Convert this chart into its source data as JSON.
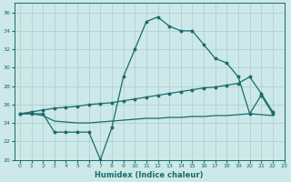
{
  "xlabel": "Humidex (Indice chaleur)",
  "bg_color": "#cce8e8",
  "grid_color": "#aacccc",
  "line_color": "#1a6b6b",
  "xlim": [
    -0.5,
    23
  ],
  "ylim": [
    20,
    37
  ],
  "xticks": [
    0,
    1,
    2,
    3,
    4,
    5,
    6,
    7,
    8,
    9,
    10,
    11,
    12,
    13,
    14,
    15,
    16,
    17,
    18,
    19,
    20,
    21,
    22,
    23
  ],
  "yticks": [
    20,
    22,
    24,
    26,
    28,
    30,
    32,
    34,
    36
  ],
  "line1_x": [
    0,
    1,
    2,
    3,
    4,
    5,
    6,
    7,
    8,
    9,
    10,
    11,
    12,
    13,
    14,
    15,
    16,
    17,
    18,
    19,
    20,
    21,
    22
  ],
  "line1_y": [
    25,
    25,
    25,
    23,
    23,
    23,
    23,
    20,
    23.5,
    29,
    32,
    35,
    35.5,
    34.5,
    34,
    34,
    32.5,
    31,
    30.5,
    29,
    25,
    27,
    25
  ],
  "line2_x": [
    0,
    1,
    2,
    3,
    4,
    5,
    6,
    7,
    8,
    9,
    10,
    11,
    12,
    13,
    14,
    15,
    16,
    17,
    18,
    19,
    20,
    21,
    22
  ],
  "line2_y": [
    25,
    25.2,
    25.4,
    25.6,
    25.7,
    25.8,
    26.0,
    26.1,
    26.2,
    26.4,
    26.6,
    26.8,
    27.0,
    27.2,
    27.4,
    27.6,
    27.8,
    27.9,
    28.1,
    28.3,
    29.0,
    27.2,
    25.2
  ],
  "line3_x": [
    0,
    1,
    2,
    3,
    4,
    5,
    6,
    7,
    8,
    9,
    10,
    11,
    12,
    13,
    14,
    15,
    16,
    17,
    18,
    19,
    20,
    21,
    22
  ],
  "line3_y": [
    25,
    25,
    24.8,
    24.2,
    24.1,
    24.0,
    24.0,
    24.1,
    24.2,
    24.3,
    24.4,
    24.5,
    24.5,
    24.6,
    24.6,
    24.7,
    24.7,
    24.8,
    24.8,
    24.9,
    25.0,
    24.9,
    24.8
  ]
}
